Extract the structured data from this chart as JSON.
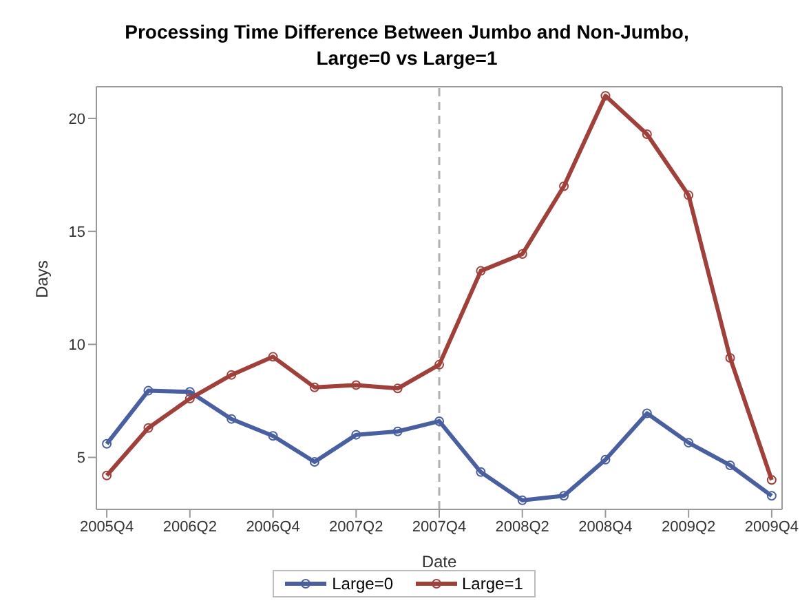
{
  "chart_data": {
    "type": "line",
    "title": "Processing Time Difference Between Jumbo and Non-Jumbo, Large=0 vs Large=1",
    "xlabel": "Date",
    "ylabel": "Days",
    "categories": [
      "2005Q4",
      null,
      "2006Q2",
      null,
      "2006Q4",
      null,
      "2007Q2",
      null,
      "2007Q4",
      null,
      "2008Q2",
      null,
      "2008Q4",
      null,
      "2009Q2",
      null,
      "2009Q4"
    ],
    "series": [
      {
        "name": "Large=0",
        "color": "#4a5fa0",
        "values": [
          5.6,
          7.95,
          7.9,
          6.7,
          5.95,
          4.8,
          6.0,
          6.15,
          6.6,
          4.35,
          3.1,
          3.3,
          4.9,
          6.95,
          5.65,
          4.65,
          3.3
        ]
      },
      {
        "name": "Large=1",
        "color": "#a0403a",
        "values": [
          4.2,
          6.3,
          7.6,
          8.65,
          9.45,
          8.1,
          8.2,
          8.05,
          9.1,
          13.25,
          14.0,
          17.0,
          21.0,
          19.3,
          16.6,
          9.4,
          4.0
        ]
      }
    ],
    "ylim": [
      2.7,
      21.4
    ],
    "yticks": [
      5,
      10,
      15,
      20
    ],
    "grid": false,
    "legend": "bottom",
    "marker": "circle",
    "line_style": "solid",
    "ref_lines": [
      {
        "axis": "x",
        "value": "2007Q4",
        "color": "#b0b0b0",
        "line_style": "dashed"
      }
    ]
  }
}
